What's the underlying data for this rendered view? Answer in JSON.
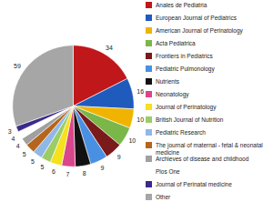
{
  "chart_data": {
    "type": "pie",
    "categories": [
      "Anales de Pediatria",
      "European Journal of Pediatrics",
      "American Journal of Perinatology",
      "Acta Pediatrica",
      "Frontiers in Pediatrics",
      "Pediatric Pulmonology",
      "Nutrients",
      "Neonatology",
      "Journal of Perinatology",
      "British Journal of Nutrition",
      "Pediatric Research",
      "The journal of maternal - fetal & neonatal medicine",
      "Archieves of disease and childhood",
      "Plos One",
      "Journal of Perinatal medicine",
      "Other"
    ],
    "values": [
      34,
      16,
      10,
      10,
      9,
      9,
      8,
      7,
      6,
      5,
      5,
      5,
      4,
      4,
      3,
      59
    ],
    "colors": [
      "#c0171b",
      "#1f5bbd",
      "#f0b400",
      "#7ab648",
      "#7b1a1a",
      "#4a90e2",
      "#111111",
      "#d9468b",
      "#f5e11c",
      "#9ccc65",
      "#8fb8e8",
      "#b5651d",
      "#a0a0a0",
      "#ffffff",
      "#3b2a8c",
      "#a6a6a6"
    ],
    "data_labels": true,
    "legend": "right"
  }
}
